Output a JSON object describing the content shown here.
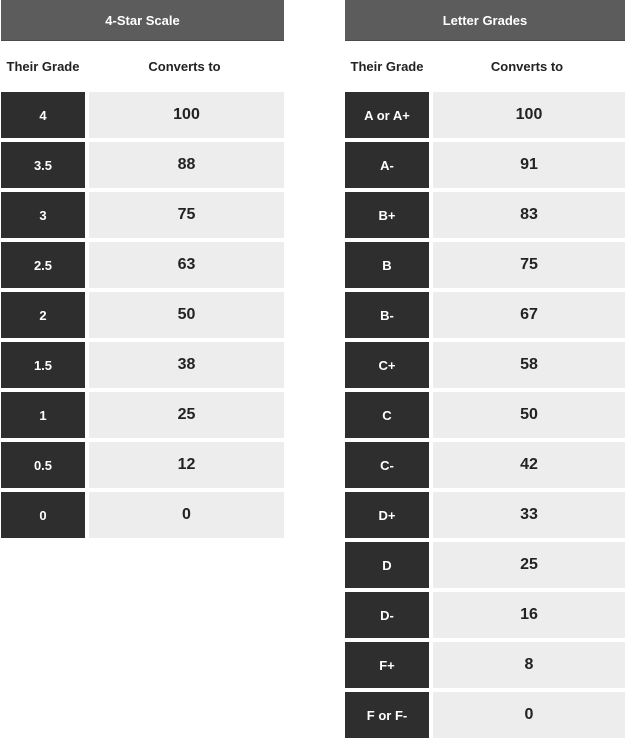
{
  "left_table": {
    "title": "4-Star Scale",
    "col_grade": "Their Grade",
    "col_conv": "Converts to",
    "rows": [
      {
        "grade": "4",
        "value": "100"
      },
      {
        "grade": "3.5",
        "value": "88"
      },
      {
        "grade": "3",
        "value": "75"
      },
      {
        "grade": "2.5",
        "value": "63"
      },
      {
        "grade": "2",
        "value": "50"
      },
      {
        "grade": "1.5",
        "value": "38"
      },
      {
        "grade": "1",
        "value": "25"
      },
      {
        "grade": "0.5",
        "value": "12"
      },
      {
        "grade": "0",
        "value": "0"
      }
    ]
  },
  "right_table": {
    "title": "Letter Grades",
    "col_grade": "Their Grade",
    "col_conv": "Converts to",
    "rows": [
      {
        "grade": "A or A+",
        "value": "100"
      },
      {
        "grade": "A-",
        "value": "91"
      },
      {
        "grade": "B+",
        "value": "83"
      },
      {
        "grade": "B",
        "value": "75"
      },
      {
        "grade": "B-",
        "value": "67"
      },
      {
        "grade": "C+",
        "value": "58"
      },
      {
        "grade": "C",
        "value": "50"
      },
      {
        "grade": "C-",
        "value": "42"
      },
      {
        "grade": "D+",
        "value": "33"
      },
      {
        "grade": "D",
        "value": "25"
      },
      {
        "grade": "D-",
        "value": "16"
      },
      {
        "grade": "F+",
        "value": "8"
      },
      {
        "grade": "F or F-",
        "value": "0"
      }
    ]
  },
  "colors": {
    "title_bg": "#5c5c5c",
    "grade_cell_bg": "#2e2e2e",
    "value_cell_bg": "#ededed"
  }
}
